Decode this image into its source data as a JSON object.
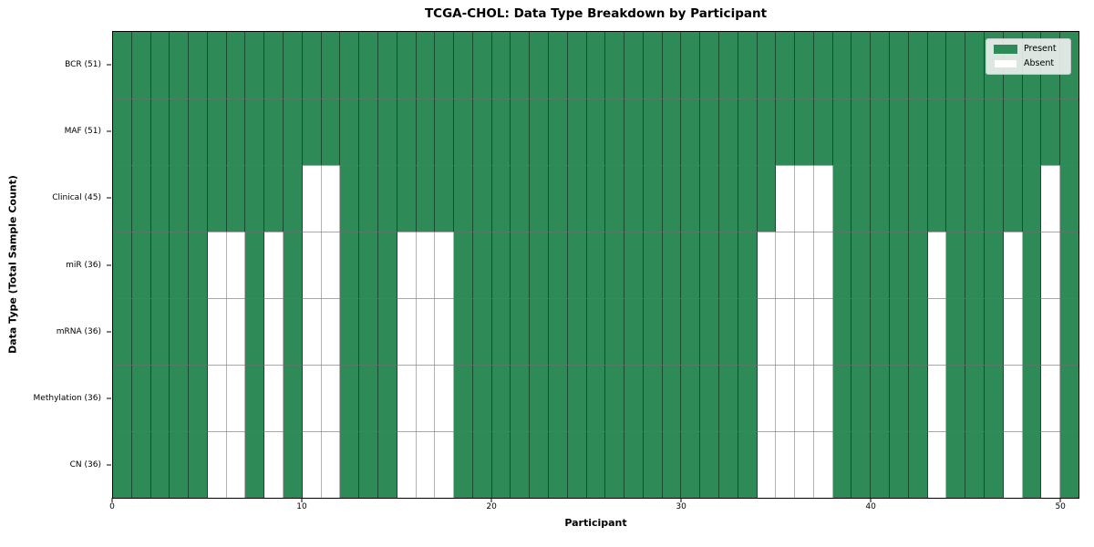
{
  "chart_data": {
    "type": "heatmap",
    "title": "TCGA-CHOL: Data Type Breakdown by Participant",
    "xlabel": "Participant",
    "ylabel": "Data Type (Total Sample Count)",
    "n_participants": 51,
    "x_ticks": [
      0,
      10,
      20,
      30,
      40,
      50
    ],
    "x_range": [
      0,
      51
    ],
    "grid": true,
    "legend_position": "upper right",
    "colors": {
      "present": "#2e8b57",
      "absent": "#ffffff"
    },
    "legend": [
      {
        "label": "Present",
        "color": "#2e8b57"
      },
      {
        "label": "Absent",
        "color": "#ffffff"
      }
    ],
    "rows": [
      {
        "label": "BCR (51)",
        "present_count": 51,
        "absent_participants": []
      },
      {
        "label": "MAF (51)",
        "present_count": 51,
        "absent_participants": []
      },
      {
        "label": "Clinical (45)",
        "present_count": 45,
        "absent_participants": [
          10,
          11,
          35,
          36,
          37,
          49
        ]
      },
      {
        "label": "miR (36)",
        "present_count": 36,
        "absent_participants": [
          5,
          6,
          8,
          10,
          11,
          15,
          16,
          17,
          34,
          35,
          36,
          37,
          43,
          47,
          49
        ]
      },
      {
        "label": "mRNA (36)",
        "present_count": 36,
        "absent_participants": [
          5,
          6,
          8,
          10,
          11,
          15,
          16,
          17,
          34,
          35,
          36,
          37,
          43,
          47,
          49
        ]
      },
      {
        "label": "Methylation (36)",
        "present_count": 36,
        "absent_participants": [
          5,
          6,
          8,
          10,
          11,
          15,
          16,
          17,
          34,
          35,
          36,
          37,
          43,
          47,
          49
        ]
      },
      {
        "label": "CN (36)",
        "present_count": 36,
        "absent_participants": [
          5,
          6,
          8,
          10,
          11,
          15,
          16,
          17,
          34,
          35,
          36,
          37,
          43,
          47,
          49
        ]
      }
    ]
  }
}
